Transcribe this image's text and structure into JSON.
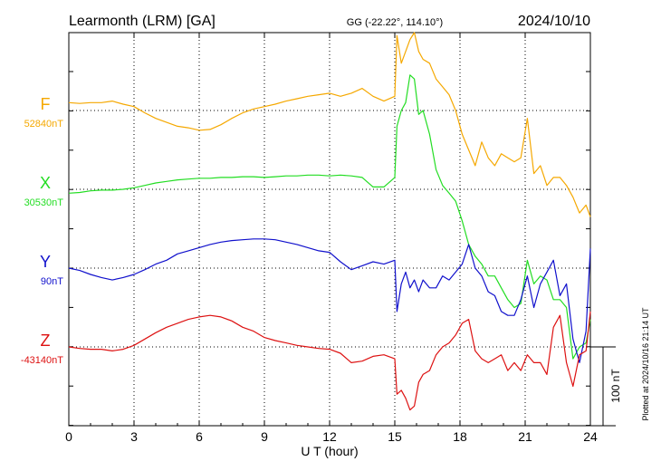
{
  "header": {
    "station": "Learmonth (LRM)  [GA]",
    "coords": "GG (-22.22°, 114.10°)",
    "date": "2024/10/10"
  },
  "side_note": "Plotted at 2024/10/16 21:14 UT",
  "scale_label": "100 nT",
  "chart_data": {
    "type": "line",
    "xlabel": "U T (hour)",
    "xlim": [
      0,
      24
    ],
    "xticks": [
      "0",
      "3",
      "6",
      "9",
      "12",
      "15",
      "18",
      "21",
      "24"
    ],
    "grid": "dotted",
    "scale_bar_nT": 100,
    "series": [
      {
        "name": "F",
        "baseline": "52840nT",
        "color": "#f5a800",
        "x": [
          0,
          0.5,
          1,
          1.5,
          2,
          2.5,
          3,
          3.5,
          4,
          4.5,
          5,
          5.5,
          6,
          6.5,
          7,
          7.5,
          8,
          8.5,
          9,
          9.5,
          10,
          10.5,
          11,
          11.5,
          12,
          12.5,
          13,
          13.5,
          14,
          14.5,
          15,
          15.1,
          15.3,
          15.5,
          15.7,
          15.9,
          16.1,
          16.3,
          16.6,
          16.9,
          17.2,
          17.5,
          17.8,
          18.1,
          18.4,
          18.7,
          19,
          19.3,
          19.6,
          19.9,
          20.2,
          20.5,
          20.8,
          21.1,
          21.4,
          21.7,
          22,
          22.3,
          22.6,
          22.9,
          23.2,
          23.5,
          23.8,
          24
        ],
        "y": [
          10,
          9,
          10,
          10,
          12,
          8,
          5,
          -3,
          -10,
          -15,
          -20,
          -22,
          -25,
          -24,
          -18,
          -10,
          -3,
          2,
          5,
          8,
          12,
          15,
          18,
          20,
          22,
          18,
          22,
          28,
          18,
          12,
          18,
          95,
          60,
          75,
          90,
          100,
          75,
          65,
          60,
          40,
          30,
          20,
          0,
          -30,
          -50,
          -70,
          -40,
          -60,
          -70,
          -55,
          -60,
          -65,
          -60,
          -10,
          -80,
          -70,
          -95,
          -85,
          -85,
          -95,
          -110,
          -130,
          -120,
          -135
        ]
      },
      {
        "name": "X",
        "baseline": "30530nT",
        "color": "#22dd22",
        "x": [
          0,
          0.5,
          1,
          1.5,
          2,
          2.5,
          3,
          3.5,
          4,
          4.5,
          5,
          5.5,
          6,
          6.5,
          7,
          7.5,
          8,
          8.5,
          9,
          9.5,
          10,
          10.5,
          11,
          11.5,
          12,
          12.5,
          13,
          13.5,
          14,
          14.5,
          15,
          15.1,
          15.3,
          15.5,
          15.7,
          15.9,
          16.1,
          16.3,
          16.6,
          16.9,
          17.2,
          17.5,
          17.8,
          18.1,
          18.4,
          18.7,
          19,
          19.3,
          19.6,
          19.9,
          20.2,
          20.5,
          20.8,
          21.1,
          21.4,
          21.7,
          22,
          22.3,
          22.6,
          22.9,
          23.2,
          23.5,
          23.8,
          24
        ],
        "y": [
          -5,
          -4,
          -2,
          -1,
          -1,
          0,
          2,
          5,
          8,
          10,
          12,
          13,
          14,
          14,
          15,
          15,
          16,
          16,
          15,
          16,
          17,
          17,
          18,
          18,
          17,
          18,
          17,
          15,
          3,
          3,
          15,
          80,
          100,
          110,
          145,
          140,
          95,
          100,
          70,
          25,
          5,
          -5,
          -15,
          -40,
          -70,
          -85,
          -95,
          -110,
          -110,
          -125,
          -140,
          -150,
          -145,
          -90,
          -120,
          -110,
          -115,
          -140,
          -140,
          -150,
          -215,
          -200,
          -195,
          -165
        ]
      },
      {
        "name": "Y",
        "baseline": "90nT",
        "color": "#1010cc",
        "x": [
          0,
          0.5,
          1,
          1.5,
          2,
          2.5,
          3,
          3.5,
          4,
          4.5,
          5,
          5.5,
          6,
          6.5,
          7,
          7.5,
          8,
          8.5,
          9,
          9.5,
          10,
          10.5,
          11,
          11.5,
          12,
          12.5,
          13,
          13.5,
          14,
          14.5,
          15,
          15.1,
          15.3,
          15.5,
          15.7,
          15.9,
          16.1,
          16.3,
          16.6,
          16.9,
          17.2,
          17.5,
          17.8,
          18.1,
          18.4,
          18.7,
          19,
          19.3,
          19.6,
          19.9,
          20.2,
          20.5,
          20.8,
          21.1,
          21.4,
          21.7,
          22,
          22.3,
          22.6,
          22.9,
          23.2,
          23.5,
          23.8,
          24
        ],
        "y": [
          0,
          -3,
          -8,
          -12,
          -15,
          -12,
          -8,
          -2,
          5,
          10,
          18,
          22,
          26,
          30,
          33,
          35,
          36,
          37,
          37,
          36,
          33,
          30,
          26,
          22,
          20,
          8,
          -2,
          3,
          8,
          5,
          10,
          -55,
          -20,
          -5,
          -25,
          -15,
          -30,
          -15,
          -25,
          -25,
          -10,
          -15,
          -5,
          5,
          30,
          0,
          -10,
          -30,
          -35,
          -55,
          -60,
          -60,
          -40,
          -10,
          -50,
          -20,
          -5,
          10,
          -35,
          -20,
          -90,
          -120,
          -80,
          25
        ]
      },
      {
        "name": "Z",
        "baseline": "-43140nT",
        "color": "#dd1111",
        "x": [
          0,
          0.5,
          1,
          1.5,
          2,
          2.5,
          3,
          3.5,
          4,
          4.5,
          5,
          5.5,
          6,
          6.5,
          7,
          7.5,
          8,
          8.5,
          9,
          9.5,
          10,
          10.5,
          11,
          11.5,
          12,
          12.5,
          13,
          13.5,
          14,
          14.5,
          15,
          15.1,
          15.3,
          15.5,
          15.7,
          15.9,
          16.1,
          16.3,
          16.6,
          16.9,
          17.2,
          17.5,
          17.8,
          18.1,
          18.4,
          18.7,
          19,
          19.3,
          19.6,
          19.9,
          20.2,
          20.5,
          20.8,
          21.1,
          21.4,
          21.7,
          22,
          22.3,
          22.6,
          22.9,
          23.2,
          23.5,
          23.8,
          24
        ],
        "y": [
          0,
          -2,
          -3,
          -3,
          -5,
          -3,
          2,
          10,
          18,
          25,
          30,
          35,
          38,
          40,
          38,
          33,
          25,
          20,
          12,
          8,
          5,
          2,
          0,
          -2,
          -3,
          -8,
          -20,
          -18,
          -12,
          -10,
          -15,
          -60,
          -55,
          -65,
          -80,
          -75,
          -45,
          -35,
          -30,
          -10,
          0,
          5,
          15,
          30,
          35,
          -5,
          -15,
          -20,
          -15,
          -10,
          -30,
          -20,
          -30,
          -10,
          -20,
          -20,
          -35,
          25,
          40,
          -20,
          -50,
          -10,
          -5,
          45
        ]
      }
    ]
  }
}
